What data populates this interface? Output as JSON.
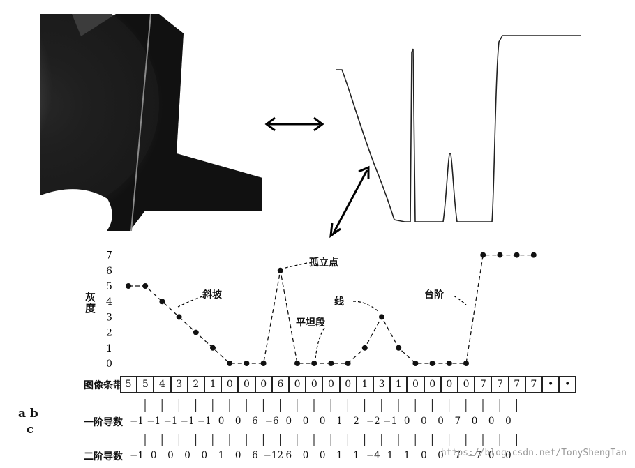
{
  "panel_labels": {
    "ab": "a  b",
    "c": "c"
  },
  "chart_data": {
    "type": "line",
    "ylabel": "灰度",
    "y_ticks": [
      "0",
      "1",
      "2",
      "3",
      "4",
      "5",
      "6",
      "7"
    ],
    "ylim": [
      0,
      7
    ],
    "values": [
      5,
      5,
      4,
      3,
      2,
      1,
      0,
      0,
      0,
      6,
      0,
      0,
      0,
      0,
      1,
      3,
      1,
      0,
      0,
      0,
      0,
      7,
      7,
      7,
      7
    ],
    "annotations": {
      "ramp": "斜坡",
      "isolated_point": "孤立点",
      "flat_segment": "平坦段",
      "line": "线",
      "step": "台阶"
    }
  },
  "image_strip": {
    "label": "图像条带",
    "values": [
      "5",
      "5",
      "4",
      "3",
      "2",
      "1",
      "0",
      "0",
      "0",
      "6",
      "0",
      "0",
      "0",
      "0",
      "1",
      "3",
      "1",
      "0",
      "0",
      "0",
      "0",
      "7",
      "7",
      "7",
      "7",
      "•",
      "•"
    ]
  },
  "first_derivative": {
    "label": "一阶导数",
    "values": [
      "-1",
      "-1",
      "-1",
      "-1",
      "-1",
      "0",
      "0",
      "6",
      "-6",
      "0",
      "0",
      "0",
      "1",
      "2",
      "-2",
      "-1",
      "0",
      "0",
      "0",
      "7",
      "0",
      "0",
      "0"
    ]
  },
  "second_derivative": {
    "label": "二阶导数",
    "values": [
      "-1",
      "0",
      "0",
      "0",
      "0",
      "1",
      "0",
      "6",
      "-12",
      "6",
      "0",
      "0",
      "1",
      "1",
      "-4",
      "1",
      "1",
      "0",
      "0",
      "7",
      "-7",
      "0",
      "0"
    ]
  },
  "watermark": "https://blog.csdn.net/TonyShengTan"
}
